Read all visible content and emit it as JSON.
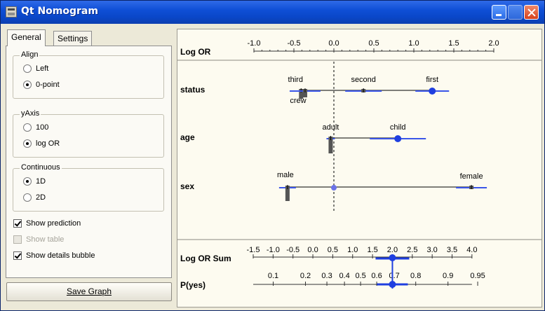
{
  "window": {
    "title": "Qt Nomogram"
  },
  "tabs": [
    {
      "label": "General"
    },
    {
      "label": "Settings"
    }
  ],
  "groups": {
    "align": {
      "title": "Align",
      "options": [
        {
          "label": "Left",
          "selected": false
        },
        {
          "label": "0-point",
          "selected": true
        }
      ]
    },
    "yaxis": {
      "title": "yAxis",
      "options": [
        {
          "label": "100",
          "selected": false
        },
        {
          "label": "log OR",
          "selected": true
        }
      ]
    },
    "continuous": {
      "title": "Continuous",
      "options": [
        {
          "label": "1D",
          "selected": true
        },
        {
          "label": "2D",
          "selected": false
        }
      ]
    }
  },
  "checks": [
    {
      "label": "Show prediction",
      "checked": true,
      "enabled": true
    },
    {
      "label": "Show table",
      "checked": false,
      "enabled": false
    },
    {
      "label": "Show details bubble",
      "checked": true,
      "enabled": true
    }
  ],
  "save_button": {
    "label": "Save Graph"
  },
  "chart_data": {
    "type": "nomogram",
    "top_axis": {
      "label": "Log OR",
      "ticks": [
        "-1.0",
        "-0.5",
        "0.0",
        "0.5",
        "1.0",
        "1.5",
        "2.0"
      ],
      "range": [
        -1.0,
        2.0
      ]
    },
    "attributes": [
      {
        "name": "status",
        "values": [
          {
            "label": "third",
            "log_or": -0.41
          },
          {
            "label": "crew",
            "log_or": -0.36
          },
          {
            "label": "second",
            "log_or": 0.37
          },
          {
            "label": "first",
            "log_or": 1.23
          }
        ]
      },
      {
        "name": "age",
        "values": [
          {
            "label": "adult",
            "log_or": -0.04
          },
          {
            "label": "child",
            "log_or": 0.8
          }
        ]
      },
      {
        "name": "sex",
        "values": [
          {
            "label": "male",
            "log_or": -0.58
          },
          {
            "label": "female",
            "log_or": 1.72
          }
        ]
      }
    ],
    "sum_axis": {
      "label": "Log OR Sum",
      "ticks": [
        "-1.5",
        "-1.0",
        "-0.5",
        "0.0",
        "0.5",
        "1.0",
        "1.5",
        "2.0",
        "2.5",
        "3.0",
        "3.5",
        "4.0"
      ],
      "range": [
        -1.5,
        4.0
      ]
    },
    "prob_axis": {
      "label": "P(yes)",
      "ticks": [
        "0.1",
        "0.2",
        "0.3",
        "0.4",
        "0.5",
        "0.6",
        "0.7",
        "0.8",
        "0.9",
        "0.95"
      ]
    },
    "prediction": {
      "log_or_sum": 2.0,
      "p_yes": 0.78
    },
    "colors": {
      "marker": "#1f3fe0",
      "bar": "#555555",
      "error": "#3a55e8"
    }
  }
}
